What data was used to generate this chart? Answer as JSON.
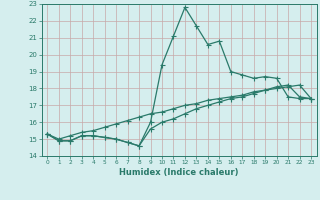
{
  "title": "",
  "xlabel": "Humidex (Indice chaleur)",
  "x_values": [
    0,
    1,
    2,
    3,
    4,
    5,
    6,
    7,
    8,
    9,
    10,
    11,
    12,
    13,
    14,
    15,
    16,
    17,
    18,
    19,
    20,
    21,
    22,
    23
  ],
  "line1": [
    15.3,
    14.9,
    14.9,
    15.2,
    15.2,
    15.1,
    15.0,
    14.8,
    14.6,
    16.0,
    19.4,
    21.1,
    22.8,
    21.7,
    20.6,
    20.8,
    19.0,
    18.8,
    18.6,
    18.7,
    18.6,
    17.5,
    17.4,
    17.4
  ],
  "line2": [
    15.3,
    14.9,
    14.9,
    15.2,
    15.2,
    15.1,
    15.0,
    14.8,
    14.6,
    15.6,
    16.0,
    16.2,
    16.5,
    16.8,
    17.0,
    17.2,
    17.4,
    17.5,
    17.7,
    17.9,
    18.1,
    18.2,
    17.5,
    17.4
  ],
  "line3": [
    15.3,
    15.0,
    15.2,
    15.4,
    15.5,
    15.7,
    15.9,
    16.1,
    16.3,
    16.5,
    16.6,
    16.8,
    17.0,
    17.1,
    17.3,
    17.4,
    17.5,
    17.6,
    17.8,
    17.9,
    18.0,
    18.1,
    18.2,
    17.4
  ],
  "line_color": "#2a7a6a",
  "bg_color": "#d5eeee",
  "grid_color": "#b8d8d8",
  "ylim": [
    14,
    23
  ],
  "yticks": [
    14,
    15,
    16,
    17,
    18,
    19,
    20,
    21,
    22,
    23
  ],
  "xticks": [
    0,
    1,
    2,
    3,
    4,
    5,
    6,
    7,
    8,
    9,
    10,
    11,
    12,
    13,
    14,
    15,
    16,
    17,
    18,
    19,
    20,
    21,
    22,
    23
  ]
}
